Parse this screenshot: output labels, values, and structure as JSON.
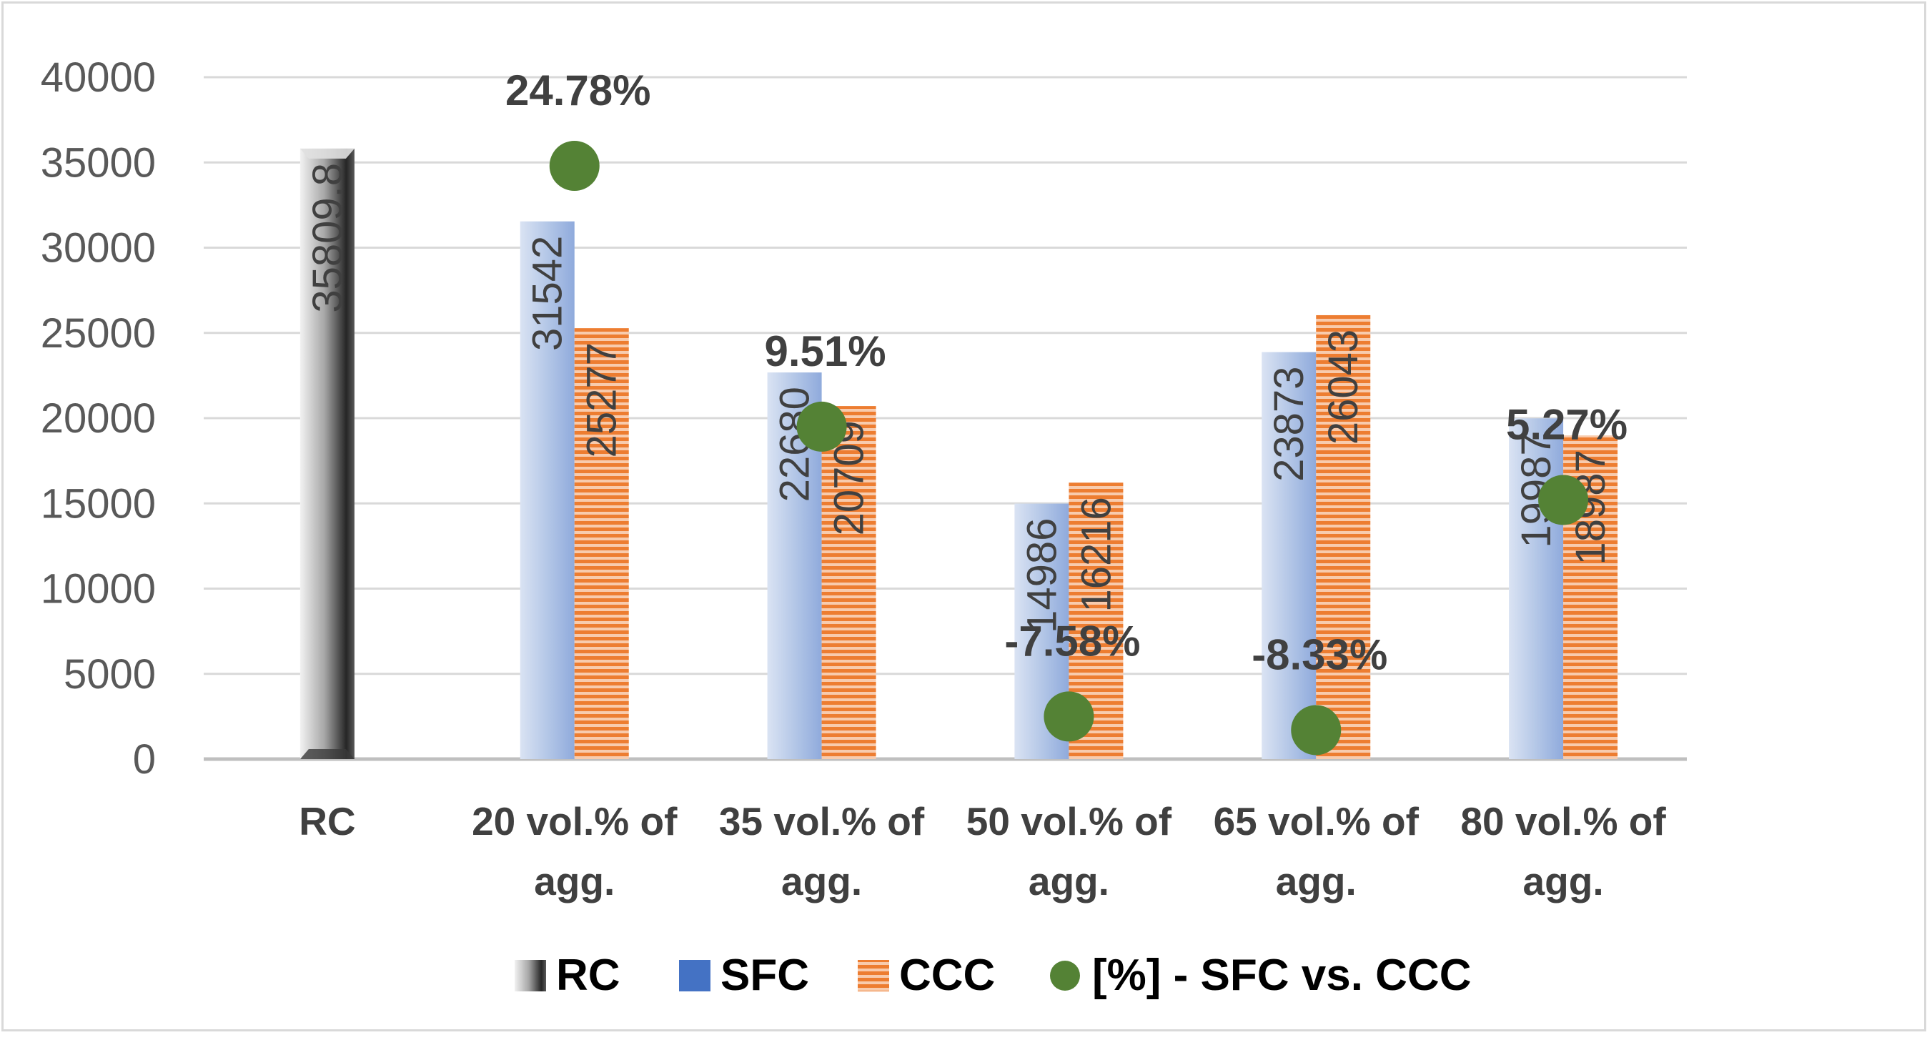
{
  "chart_data": {
    "type": "bar",
    "categories": [
      "RC",
      "20 vol.% of agg.",
      "35 vol.% of agg.",
      "50 vol.% of agg.",
      "65 vol.% of agg.",
      "80 vol.% of agg."
    ],
    "category_lines": [
      [
        "RC"
      ],
      [
        "20 vol.% of",
        "agg."
      ],
      [
        "35 vol.% of",
        "agg."
      ],
      [
        "50 vol.% of",
        "agg."
      ],
      [
        "65 vol.% of",
        "agg."
      ],
      [
        "80 vol.% of",
        "agg."
      ]
    ],
    "series": [
      {
        "name": "RC",
        "values": [
          35809.8,
          null,
          null,
          null,
          null,
          null
        ],
        "labels": [
          "35809.8",
          null,
          null,
          null,
          null,
          null
        ],
        "color": "#7f7f7f"
      },
      {
        "name": "SFC",
        "values": [
          null,
          31542,
          22680,
          14986,
          23873,
          19987
        ],
        "labels": [
          null,
          "31542",
          "22680",
          "14986",
          "23873",
          "19987"
        ],
        "color": "#4472c4"
      },
      {
        "name": "CCC",
        "values": [
          null,
          25277,
          20709,
          16216,
          26043,
          18987
        ],
        "labels": [
          null,
          "25277",
          "20709",
          "16216",
          "26043",
          "18987"
        ],
        "color": "#ed7d31"
      }
    ],
    "percent_series": {
      "name": "[%] - SFC vs. CCC",
      "color": "#548235",
      "values": [
        null,
        24.78,
        9.51,
        -7.58,
        -8.33,
        5.27
      ],
      "labels": [
        null,
        "24.78%",
        "9.51%",
        "-7.58%",
        "-8.33%",
        "5.27%"
      ],
      "plot_level": [
        null,
        34800,
        19500,
        2500,
        1700,
        15200
      ]
    },
    "y_ticks": [
      0,
      5000,
      10000,
      15000,
      20000,
      25000,
      30000,
      35000,
      40000
    ],
    "ylim": [
      0,
      40000
    ],
    "grid": true,
    "legend_position": "bottom",
    "title": "",
    "xlabel": "",
    "ylabel": ""
  }
}
